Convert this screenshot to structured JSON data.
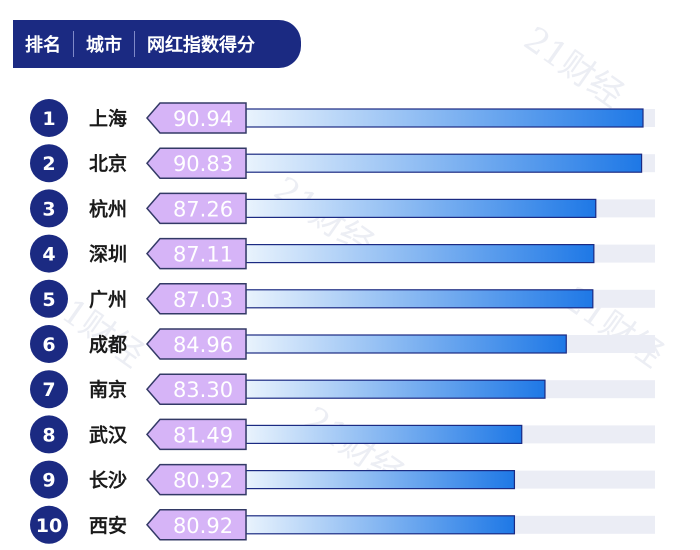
{
  "header": {
    "col_rank": "排名",
    "col_city": "城市",
    "col_score": "网红指数得分"
  },
  "watermark": "21财经",
  "colors": {
    "navy": "#1b2a82",
    "bar_light": "#e9f3fd",
    "bar_dark": "#1e78e6",
    "track": "#ebedf5",
    "tag_fill": "#d6b4f7",
    "tag_border": "#333a66"
  },
  "chart_data": {
    "type": "bar",
    "orientation": "horizontal",
    "ranks": [
      "1",
      "2",
      "3",
      "4",
      "5",
      "6",
      "7",
      "8",
      "9",
      "10"
    ],
    "categories": [
      "上海",
      "北京",
      "杭州",
      "深圳",
      "广州",
      "成都",
      "南京",
      "武汉",
      "长沙",
      "西安"
    ],
    "value_labels": [
      "90.94",
      "90.83",
      "87.26",
      "87.11",
      "87.03",
      "84.96",
      "83.30",
      "81.49",
      "80.92",
      "80.92"
    ],
    "values": [
      90.94,
      90.83,
      87.26,
      87.11,
      87.03,
      84.96,
      83.3,
      81.49,
      80.92,
      80.92
    ]
  }
}
